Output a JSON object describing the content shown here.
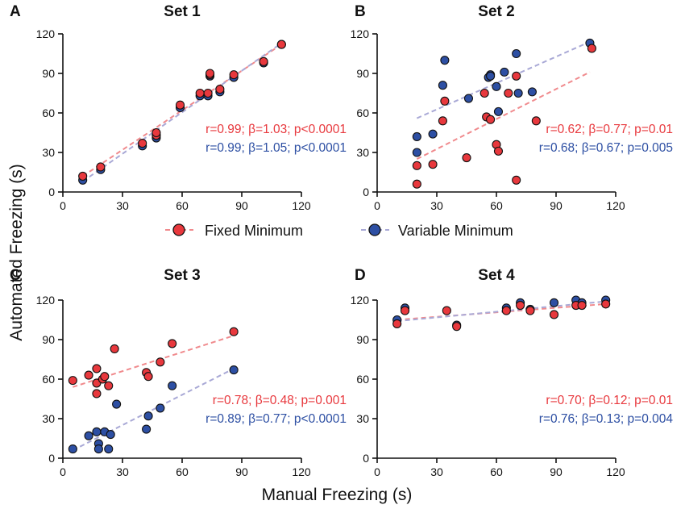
{
  "figure": {
    "ylabel": "Automated Freezing (s)",
    "xlabel": "Manual Freezing (s)",
    "legend": {
      "fixed": {
        "label": "Fixed Minimum",
        "color": "#e8383d",
        "line_color": "#f08a8d"
      },
      "variable": {
        "label": "Variable Minimum",
        "color": "#2d4fa3",
        "line_color": "#a9a9d6"
      }
    }
  },
  "chart_data": [
    {
      "type": "scatter",
      "panel": "A",
      "title": "Set 1",
      "xlim": [
        0,
        120
      ],
      "ylim": [
        0,
        120
      ],
      "xticks": [
        0,
        30,
        60,
        90,
        120
      ],
      "yticks": [
        0,
        30,
        60,
        90,
        120
      ],
      "series": [
        {
          "name": "Fixed Minimum",
          "points": [
            [
              10,
              12
            ],
            [
              19,
              19
            ],
            [
              40,
              37
            ],
            [
              47,
              43
            ],
            [
              47,
              45
            ],
            [
              59,
              66
            ],
            [
              69,
              75
            ],
            [
              73,
              75
            ],
            [
              74,
              89
            ],
            [
              74,
              90
            ],
            [
              79,
              78
            ],
            [
              86,
              89
            ],
            [
              101,
              99
            ],
            [
              110,
              112
            ]
          ],
          "fit": [
            [
              10,
              12
            ],
            [
              110,
              112
            ]
          ],
          "stats": "r=0.99; β=1.03; p<0.0001"
        },
        {
          "name": "Variable Minimum",
          "points": [
            [
              10,
              9
            ],
            [
              19,
              17
            ],
            [
              40,
              35
            ],
            [
              47,
              41
            ],
            [
              47,
              43
            ],
            [
              59,
              64
            ],
            [
              69,
              73
            ],
            [
              73,
              73
            ],
            [
              74,
              88
            ],
            [
              79,
              76
            ],
            [
              86,
              87
            ],
            [
              101,
              98
            ],
            [
              110,
              112
            ]
          ],
          "fit": [
            [
              10,
              8
            ],
            [
              110,
              113
            ]
          ],
          "stats": "r=0.99; β=1.05; p<0.0001"
        }
      ]
    },
    {
      "type": "scatter",
      "panel": "B",
      "title": "Set 2",
      "xlim": [
        0,
        120
      ],
      "ylim": [
        0,
        120
      ],
      "xticks": [
        0,
        30,
        60,
        90,
        120
      ],
      "yticks": [
        0,
        30,
        60,
        90,
        120
      ],
      "series": [
        {
          "name": "Fixed Minimum",
          "points": [
            [
              20,
              6
            ],
            [
              20,
              20
            ],
            [
              28,
              21
            ],
            [
              33,
              54
            ],
            [
              34,
              69
            ],
            [
              45,
              26
            ],
            [
              54,
              75
            ],
            [
              55,
              57
            ],
            [
              57,
              55
            ],
            [
              60,
              36
            ],
            [
              61,
              31
            ],
            [
              66,
              75
            ],
            [
              70,
              88
            ],
            [
              70,
              9
            ],
            [
              80,
              54
            ],
            [
              108,
              109
            ]
          ],
          "fit": [
            [
              20,
              25
            ],
            [
              107,
              91
            ]
          ],
          "stats": "r=0.62; β=0.77; p=0.01"
        },
        {
          "name": "Variable Minimum",
          "points": [
            [
              20,
              30
            ],
            [
              20,
              42
            ],
            [
              28,
              44
            ],
            [
              33,
              81
            ],
            [
              34,
              100
            ],
            [
              46,
              71
            ],
            [
              56,
              87
            ],
            [
              57,
              89
            ],
            [
              57,
              88
            ],
            [
              60,
              80
            ],
            [
              61,
              61
            ],
            [
              64,
              91
            ],
            [
              70,
              105
            ],
            [
              71,
              75
            ],
            [
              78,
              76
            ],
            [
              107,
              113
            ]
          ],
          "fit": [
            [
              20,
              56
            ],
            [
              107,
              114
            ]
          ],
          "stats": "r=0.68; β=0.67; p=0.005"
        }
      ]
    },
    {
      "type": "scatter",
      "panel": "C",
      "title": "Set 3",
      "xlim": [
        0,
        120
      ],
      "ylim": [
        0,
        120
      ],
      "xticks": [
        0,
        30,
        60,
        90,
        120
      ],
      "yticks": [
        0,
        30,
        60,
        90,
        120
      ],
      "series": [
        {
          "name": "Fixed Minimum",
          "points": [
            [
              5,
              59
            ],
            [
              13,
              63
            ],
            [
              17,
              68
            ],
            [
              17,
              57
            ],
            [
              17,
              49
            ],
            [
              20,
              60
            ],
            [
              21,
              62
            ],
            [
              23,
              55
            ],
            [
              26,
              83
            ],
            [
              42,
              65
            ],
            [
              43,
              62
            ],
            [
              49,
              73
            ],
            [
              55,
              87
            ],
            [
              86,
              96
            ]
          ],
          "fit": [
            [
              5,
              54
            ],
            [
              86,
              93
            ]
          ],
          "stats": "r=0.78; β=0.48; p=0.001"
        },
        {
          "name": "Variable Minimum",
          "points": [
            [
              5,
              7
            ],
            [
              13,
              17
            ],
            [
              17,
              20
            ],
            [
              18,
              11
            ],
            [
              18,
              7
            ],
            [
              21,
              20
            ],
            [
              23,
              7
            ],
            [
              24,
              18
            ],
            [
              27,
              41
            ],
            [
              42,
              22
            ],
            [
              43,
              32
            ],
            [
              49,
              38
            ],
            [
              55,
              55
            ],
            [
              86,
              67
            ]
          ],
          "fit": [
            [
              5,
              6
            ],
            [
              86,
              68
            ]
          ],
          "stats": "r=0.89; β=0.77; p<0.0001"
        }
      ]
    },
    {
      "type": "scatter",
      "panel": "D",
      "title": "Set 4",
      "xlim": [
        0,
        120
      ],
      "ylim": [
        0,
        120
      ],
      "xticks": [
        0,
        30,
        60,
        90,
        120
      ],
      "yticks": [
        0,
        30,
        60,
        90,
        120
      ],
      "series": [
        {
          "name": "Fixed Minimum",
          "points": [
            [
              10,
              102
            ],
            [
              14,
              112
            ],
            [
              35,
              112
            ],
            [
              40,
              100
            ],
            [
              65,
              112
            ],
            [
              72,
              116
            ],
            [
              77,
              112
            ],
            [
              89,
              109
            ],
            [
              100,
              116
            ],
            [
              103,
              116
            ],
            [
              115,
              117
            ]
          ],
          "fit": [
            [
              10,
              105
            ],
            [
              115,
              117
            ]
          ],
          "stats": "r=0.70; β=0.12; p=0.01"
        },
        {
          "name": "Variable Minimum",
          "points": [
            [
              10,
              105
            ],
            [
              14,
              114
            ],
            [
              40,
              101
            ],
            [
              65,
              114
            ],
            [
              72,
              118
            ],
            [
              77,
              113
            ],
            [
              89,
              118
            ],
            [
              100,
              120
            ],
            [
              103,
              118
            ],
            [
              115,
              120
            ]
          ],
          "fit": [
            [
              10,
              104
            ],
            [
              115,
              119
            ]
          ],
          "stats": "r=0.76; β=0.13; p=0.004"
        }
      ]
    }
  ]
}
